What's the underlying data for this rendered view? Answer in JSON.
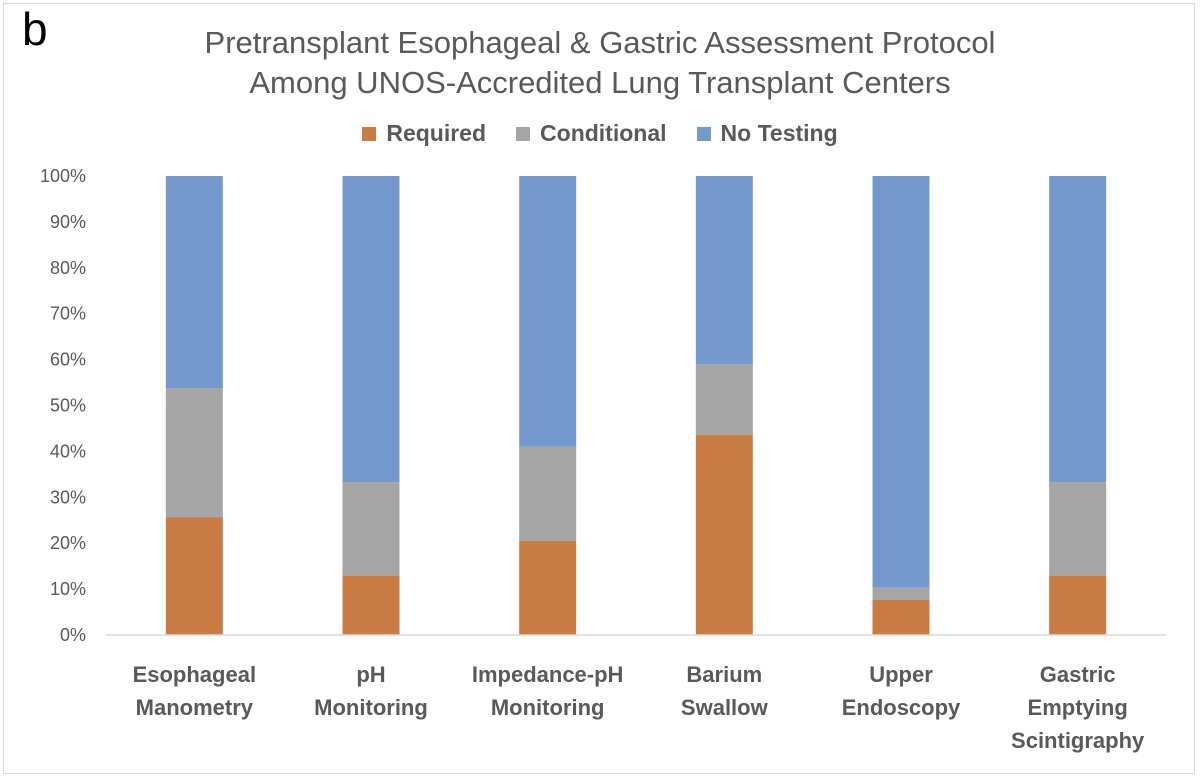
{
  "panel_label": "b",
  "chart_data": {
    "type": "bar",
    "stacked": true,
    "title": "Pretransplant Esophageal & Gastric Assessment Protocol",
    "subtitle": "Among UNOS-Accredited Lung Transplant Centers",
    "categories": [
      [
        "Esophageal",
        "Manometry"
      ],
      [
        "pH",
        "Monitoring"
      ],
      [
        "Impedance-pH",
        "Monitoring"
      ],
      [
        "Barium",
        "Swallow"
      ],
      [
        "Upper",
        "Endoscopy"
      ],
      [
        "Gastric",
        "Emptying",
        "Scintigraphy"
      ]
    ],
    "series": [
      {
        "name": "Required",
        "color": "#c97c43",
        "values": [
          25.6,
          13.0,
          20.5,
          43.6,
          7.7,
          13.0
        ]
      },
      {
        "name": "Conditional",
        "color": "#a5a5a5",
        "values": [
          28.2,
          20.3,
          20.5,
          15.4,
          2.6,
          20.3
        ]
      },
      {
        "name": "No Testing",
        "color": "#7598cd",
        "values": [
          46.2,
          66.7,
          59.0,
          41.0,
          89.7,
          66.7
        ]
      }
    ],
    "ylim": [
      0,
      100
    ],
    "yticks": [
      "0%",
      "10%",
      "20%",
      "30%",
      "40%",
      "50%",
      "60%",
      "70%",
      "80%",
      "90%",
      "100%"
    ],
    "legend_position": "top",
    "grid": false
  }
}
